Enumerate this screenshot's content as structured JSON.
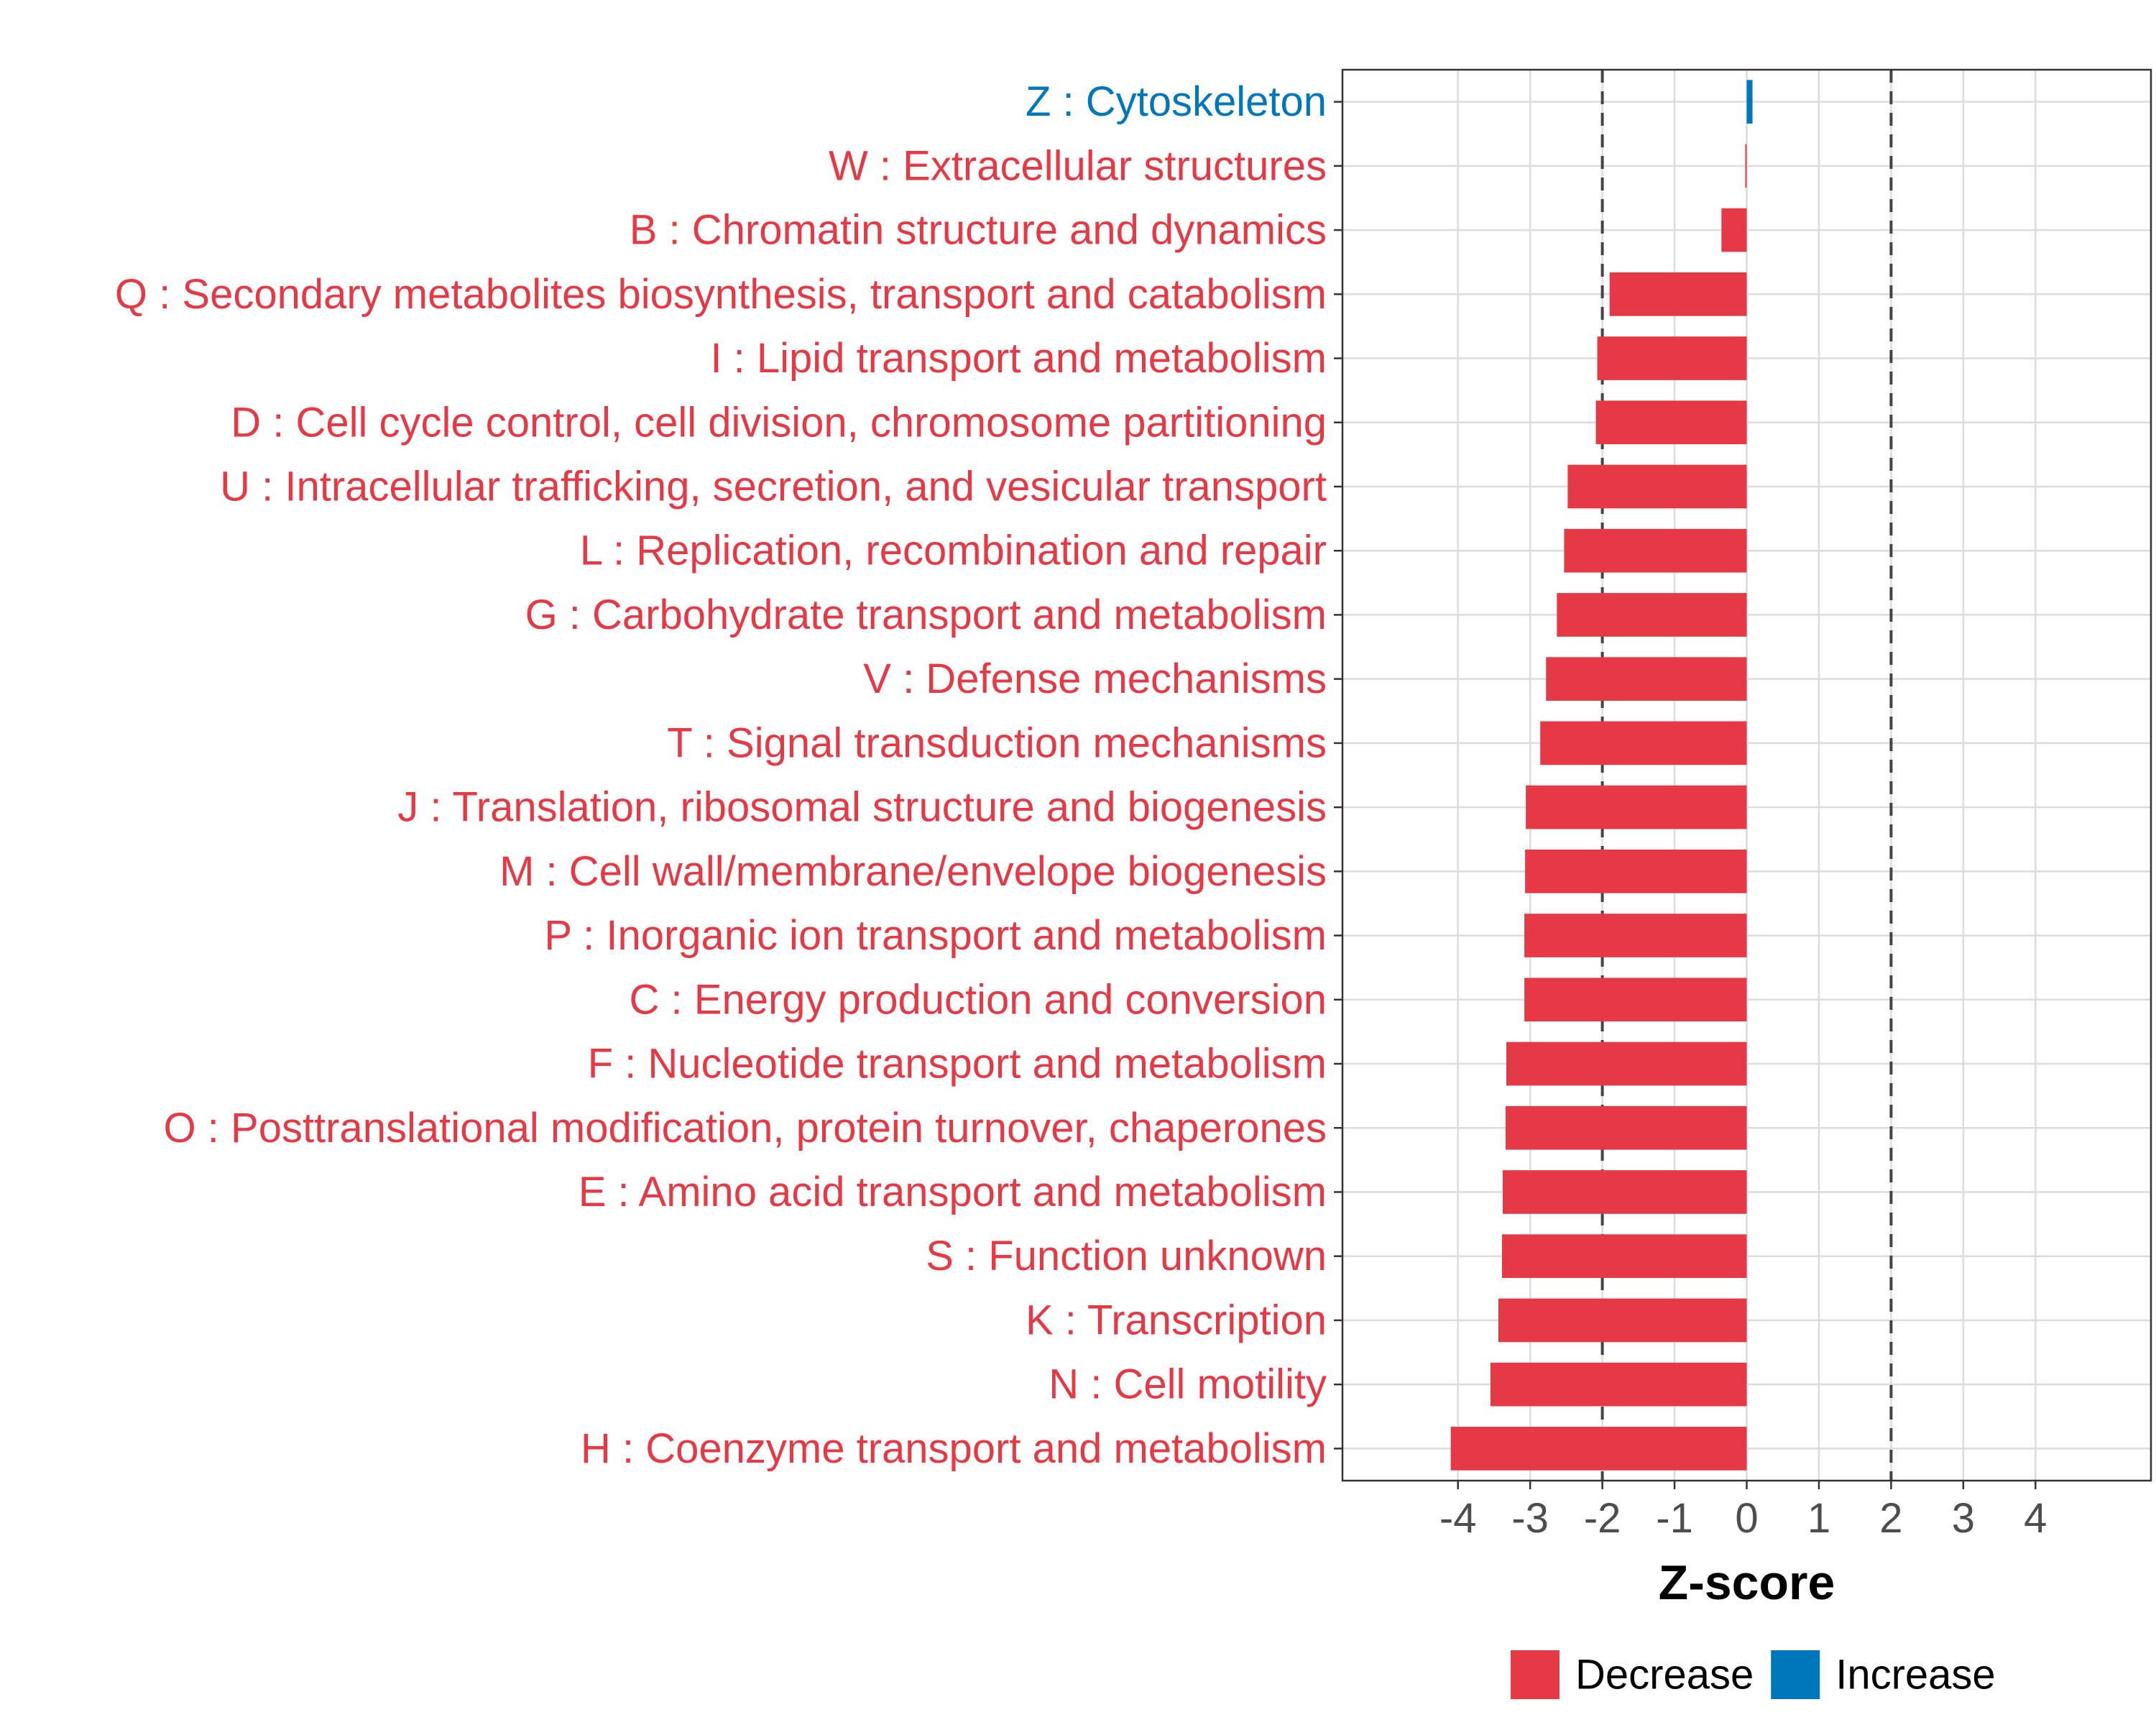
{
  "chart_data": {
    "type": "bar",
    "orientation": "horizontal",
    "categories": [
      "Z : Cytoskeleton",
      "W : Extracellular structures",
      "B : Chromatin structure and dynamics",
      "Q : Secondary metabolites biosynthesis, transport and catabolism",
      "I : Lipid transport and metabolism",
      "D : Cell cycle control, cell division, chromosome partitioning",
      "U : Intracellular trafficking, secretion, and vesicular transport",
      "L : Replication, recombination and repair",
      "G : Carbohydrate transport and metabolism",
      "V : Defense mechanisms",
      "T : Signal transduction mechanisms",
      "J : Translation, ribosomal structure and biogenesis",
      "M : Cell wall/membrane/envelope biogenesis",
      "P : Inorganic ion transport and metabolism",
      "C : Energy production and conversion",
      "F : Nucleotide transport and metabolism",
      "O : Posttranslational modification, protein turnover, chaperones",
      "E : Amino acid transport and metabolism",
      "S : Function unknown",
      "K : Transcription",
      "N : Cell motility",
      "H : Coenzyme transport and metabolism"
    ],
    "values": [
      0.08,
      -0.02,
      -0.35,
      -1.9,
      -2.07,
      -2.09,
      -2.48,
      -2.53,
      -2.63,
      -2.78,
      -2.86,
      -3.06,
      -3.07,
      -3.08,
      -3.08,
      -3.33,
      -3.34,
      -3.38,
      -3.39,
      -3.44,
      -3.55,
      -4.1
    ],
    "groups": [
      "Increase",
      "Decrease",
      "Decrease",
      "Decrease",
      "Decrease",
      "Decrease",
      "Decrease",
      "Decrease",
      "Decrease",
      "Decrease",
      "Decrease",
      "Decrease",
      "Decrease",
      "Decrease",
      "Decrease",
      "Decrease",
      "Decrease",
      "Decrease",
      "Decrease",
      "Decrease",
      "Decrease",
      "Decrease"
    ],
    "xlabel": "Z-score",
    "ylabel": "",
    "xlim": [
      -5.6,
      5.6
    ],
    "xticks": [
      -4,
      -3,
      -2,
      -1,
      0,
      1,
      2,
      3,
      4
    ],
    "xtick_labels": [
      "-4",
      "-3",
      "-2",
      "-1",
      "0",
      "1",
      "2",
      "3",
      "4"
    ],
    "reference_lines": [
      -2,
      2
    ],
    "grid": true,
    "legend": {
      "position": "bottom",
      "entries": [
        {
          "name": "Decrease",
          "color": "#E63946"
        },
        {
          "name": "Increase",
          "color": "#0077BB"
        }
      ]
    },
    "colors": {
      "Decrease": "#E63946",
      "Increase": "#0077BB"
    }
  }
}
